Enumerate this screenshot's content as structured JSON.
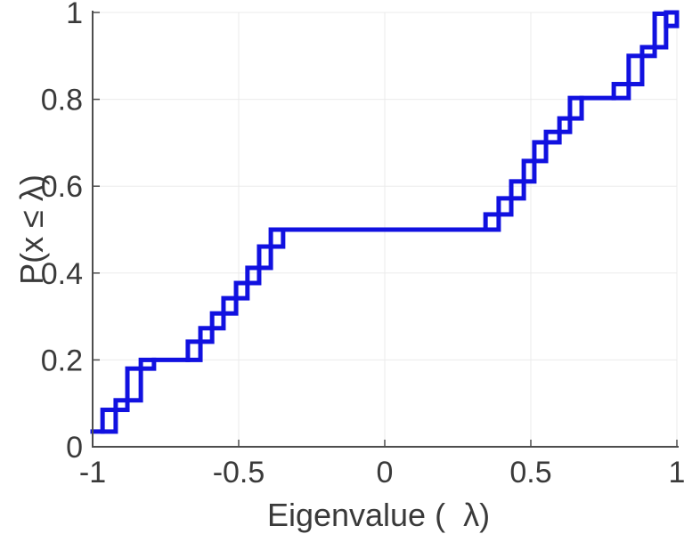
{
  "chart_data": {
    "type": "ecdf_step",
    "title": "",
    "xlabel": "Eigenvalue (  λ)",
    "ylabel": "P(x ≤ λ)",
    "xlim": [
      -1,
      1
    ],
    "ylim": [
      0,
      1
    ],
    "grid": true,
    "legend_position": "none",
    "xticks": {
      "values": [
        -1,
        -0.5,
        0,
        0.5,
        1
      ],
      "labels": [
        "-1",
        "-0.5",
        "0",
        "0.5",
        "1"
      ]
    },
    "yticks": {
      "values": [
        0,
        0.2,
        0.4,
        0.6,
        0.8,
        1
      ],
      "labels": [
        "0",
        "0.2",
        "0.4",
        "0.6",
        "0.8",
        "1"
      ]
    },
    "colors": {
      "line": "#1111e0",
      "axis": "#4d4d4d",
      "grid": "#ebebeb",
      "tick_label": "#3a3a3a",
      "axis_label": "#3a3a3a",
      "background": "#ffffff"
    },
    "line_width": 5,
    "segments": [
      {
        "t": "flat",
        "x1": -1.0,
        "x2": -0.966,
        "p": 0.035
      },
      {
        "t": "rect",
        "x1": -0.966,
        "x2": -0.921,
        "p1": 0.035,
        "p2": 0.085
      },
      {
        "t": "rect",
        "x1": -0.921,
        "x2": -0.881,
        "p1": 0.085,
        "p2": 0.107
      },
      {
        "t": "rect",
        "x1": -0.881,
        "x2": -0.835,
        "p1": 0.107,
        "p2": 0.18
      },
      {
        "t": "rect",
        "x1": -0.835,
        "x2": -0.79,
        "p1": 0.18,
        "p2": 0.2
      },
      {
        "t": "flat",
        "x1": -0.79,
        "x2": -0.674,
        "p": 0.2
      },
      {
        "t": "rect",
        "x1": -0.674,
        "x2": -0.631,
        "p1": 0.2,
        "p2": 0.242
      },
      {
        "t": "rect",
        "x1": -0.631,
        "x2": -0.591,
        "p1": 0.242,
        "p2": 0.273
      },
      {
        "t": "rect",
        "x1": -0.591,
        "x2": -0.552,
        "p1": 0.273,
        "p2": 0.307
      },
      {
        "t": "rect",
        "x1": -0.552,
        "x2": -0.509,
        "p1": 0.307,
        "p2": 0.342
      },
      {
        "t": "rect",
        "x1": -0.509,
        "x2": -0.47,
        "p1": 0.342,
        "p2": 0.377
      },
      {
        "t": "rect",
        "x1": -0.47,
        "x2": -0.43,
        "p1": 0.377,
        "p2": 0.412
      },
      {
        "t": "rect",
        "x1": -0.43,
        "x2": -0.39,
        "p1": 0.412,
        "p2": 0.461
      },
      {
        "t": "rect",
        "x1": -0.39,
        "x2": -0.348,
        "p1": 0.461,
        "p2": 0.5
      },
      {
        "t": "flat",
        "x1": -0.348,
        "x2": 0.345,
        "p": 0.5
      },
      {
        "t": "rect",
        "x1": 0.345,
        "x2": 0.39,
        "p1": 0.5,
        "p2": 0.535
      },
      {
        "t": "rect",
        "x1": 0.39,
        "x2": 0.433,
        "p1": 0.535,
        "p2": 0.572
      },
      {
        "t": "rect",
        "x1": 0.433,
        "x2": 0.476,
        "p1": 0.572,
        "p2": 0.611
      },
      {
        "t": "rect",
        "x1": 0.476,
        "x2": 0.512,
        "p1": 0.611,
        "p2": 0.658
      },
      {
        "t": "rect",
        "x1": 0.512,
        "x2": 0.552,
        "p1": 0.658,
        "p2": 0.701
      },
      {
        "t": "rect",
        "x1": 0.552,
        "x2": 0.598,
        "p1": 0.701,
        "p2": 0.725
      },
      {
        "t": "rect",
        "x1": 0.598,
        "x2": 0.634,
        "p1": 0.725,
        "p2": 0.756
      },
      {
        "t": "rect",
        "x1": 0.634,
        "x2": 0.674,
        "p1": 0.756,
        "p2": 0.803
      },
      {
        "t": "flat",
        "x1": 0.674,
        "x2": 0.784,
        "p": 0.803
      },
      {
        "t": "rect",
        "x1": 0.784,
        "x2": 0.835,
        "p1": 0.803,
        "p2": 0.835
      },
      {
        "t": "rect",
        "x1": 0.835,
        "x2": 0.881,
        "p1": 0.835,
        "p2": 0.9
      },
      {
        "t": "rect",
        "x1": 0.881,
        "x2": 0.924,
        "p1": 0.9,
        "p2": 0.92
      },
      {
        "t": "rect",
        "x1": 0.924,
        "x2": 0.963,
        "p1": 0.92,
        "p2": 0.997
      },
      {
        "t": "rect",
        "x1": 0.963,
        "x2": 1.0,
        "p1": 0.969,
        "p2": 1.0
      }
    ]
  }
}
